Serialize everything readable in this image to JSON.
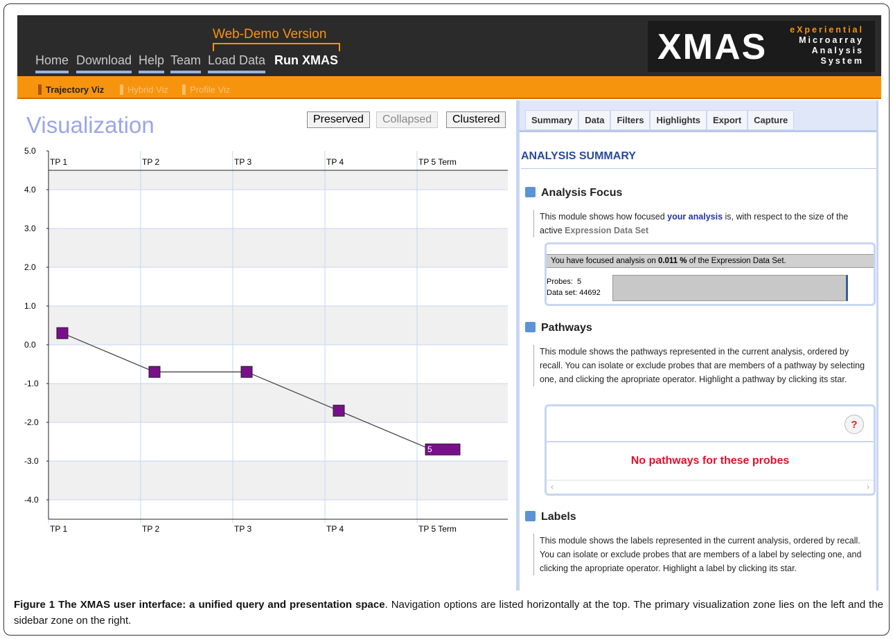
{
  "nav": {
    "banner": "Web-Demo Version",
    "items": [
      "Home",
      "Download",
      "Help",
      "Team",
      "Load Data"
    ],
    "active": "Run XMAS"
  },
  "logo": {
    "name": "XMAS",
    "tagline": [
      "eXperiential",
      "Microarray",
      "Analysis",
      "System"
    ]
  },
  "subnav": [
    "Trajectory Viz",
    "Hybrid Viz",
    "Profile Viz"
  ],
  "visualization": {
    "title": "Visualization",
    "modes": [
      "Preserved",
      "Collapsed",
      "Clustered"
    ]
  },
  "chart_data": {
    "type": "line",
    "categories": [
      "TP 1",
      "TP 2",
      "TP 3",
      "TP 4",
      "TP 5 Term"
    ],
    "series": [
      {
        "color": "#7a0f8c",
        "values": [
          0.3,
          -0.7,
          -0.7,
          -1.7,
          -2.7
        ]
      }
    ],
    "end_label": "5",
    "ylim": [
      -4.5,
      5
    ],
    "yticks": [
      {
        "value": 5,
        "label": "5.0"
      },
      {
        "value": 4,
        "label": "4.0"
      },
      {
        "value": 3,
        "label": "3.0"
      },
      {
        "value": 2,
        "label": "2.0"
      },
      {
        "value": 1,
        "label": "1.0"
      },
      {
        "value": 0,
        "label": "0.0"
      },
      {
        "value": -1,
        "label": "-1.0"
      },
      {
        "value": -2,
        "label": "-2.0"
      },
      {
        "value": -3,
        "label": "-3.0"
      },
      {
        "value": -4,
        "label": "-4.0"
      }
    ],
    "grid": true
  },
  "sidebar": {
    "tabs": [
      "Summary",
      "Data",
      "Filters",
      "Highlights",
      "Export",
      "Capture"
    ],
    "heading": "ANALYSIS SUMMARY",
    "focus": {
      "title": "Analysis Focus",
      "text": [
        "This module shows how focused ",
        "your analysis",
        " is, with respect to the size of the active ",
        "Expression Data Set"
      ],
      "bar_text": [
        "You have focused analysis on ",
        "0.011 %",
        " of the Expression Data Set."
      ],
      "probes_label": "Probes:",
      "probes": 5,
      "dataset_label": "Data set:",
      "dataset": 44692
    },
    "pathways": {
      "title": "Pathways",
      "text": "This module shows the pathways represented in the current analysis, ordered by recall. You can isolate or exclude probes that are members of a pathway by selecting one, and clicking the apropriate operator. Highlight a pathway by clicking its star.",
      "help": "?",
      "empty": "No pathways for these probes"
    },
    "labels": {
      "title": "Labels",
      "text": "This module shows the labels represented in the current analysis, ordered by recall. You can isolate or exclude probes that are members of a label by selecting one, and clicking the apropriate operator. Highlight a label by clicking its star."
    }
  },
  "caption": {
    "label": "Figure 1 The XMAS user interface: a unified query and presentation space",
    "text": ". Navigation options are listed horizontally at the top. The primary visualization zone lies on the left and the sidebar zone on the right."
  }
}
